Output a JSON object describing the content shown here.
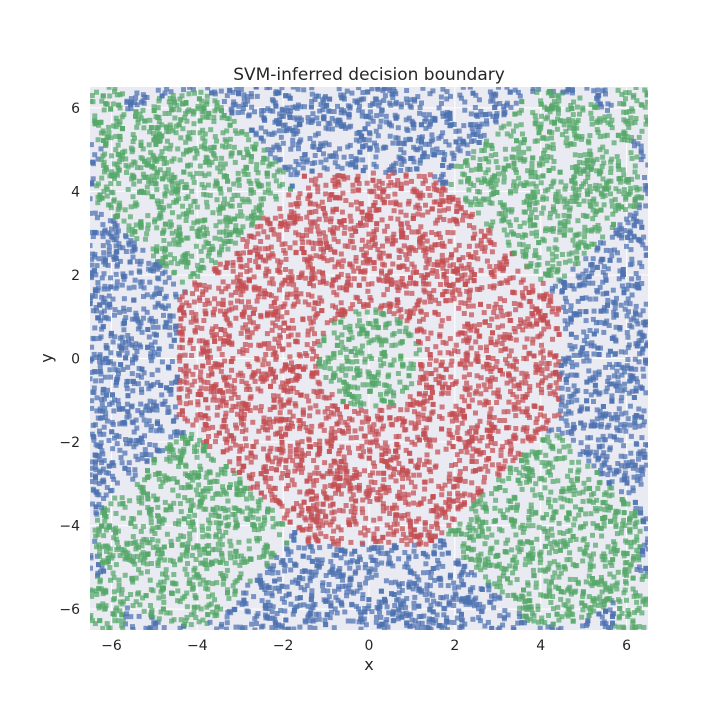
{
  "chart_data": {
    "type": "scatter",
    "title": "SVM-inferred decision boundary",
    "xlabel": "x",
    "ylabel": "y",
    "xlim": [
      -6.5,
      6.5
    ],
    "ylim": [
      -6.5,
      6.5
    ],
    "grid": true,
    "background": "#eaeaf2",
    "marker": "square",
    "x_ticks": [
      {
        "value": -6,
        "label": "−6"
      },
      {
        "value": -4,
        "label": "−4"
      },
      {
        "value": -2,
        "label": "−2"
      },
      {
        "value": 0,
        "label": "0"
      },
      {
        "value": 2,
        "label": "2"
      },
      {
        "value": 4,
        "label": "4"
      },
      {
        "value": 6,
        "label": "6"
      }
    ],
    "y_ticks": [
      {
        "value": -6,
        "label": "−6"
      },
      {
        "value": -4,
        "label": "−4"
      },
      {
        "value": -2,
        "label": "−2"
      },
      {
        "value": 0,
        "label": "0"
      },
      {
        "value": 2,
        "label": "2"
      },
      {
        "value": 4,
        "label": "4"
      },
      {
        "value": 6,
        "label": "6"
      }
    ],
    "series": [
      {
        "color": "#4c72b0",
        "region": "outer ring and corners, 4.5 < r < 6.5, plus far corners"
      },
      {
        "color": "#c44e52",
        "region": "octagonal ring, 1.2 < r < 4.5"
      },
      {
        "color": "#55a868",
        "region": "central disc r < 1.2 and four diagonal lobes near (±4, ±4)"
      }
    ]
  }
}
